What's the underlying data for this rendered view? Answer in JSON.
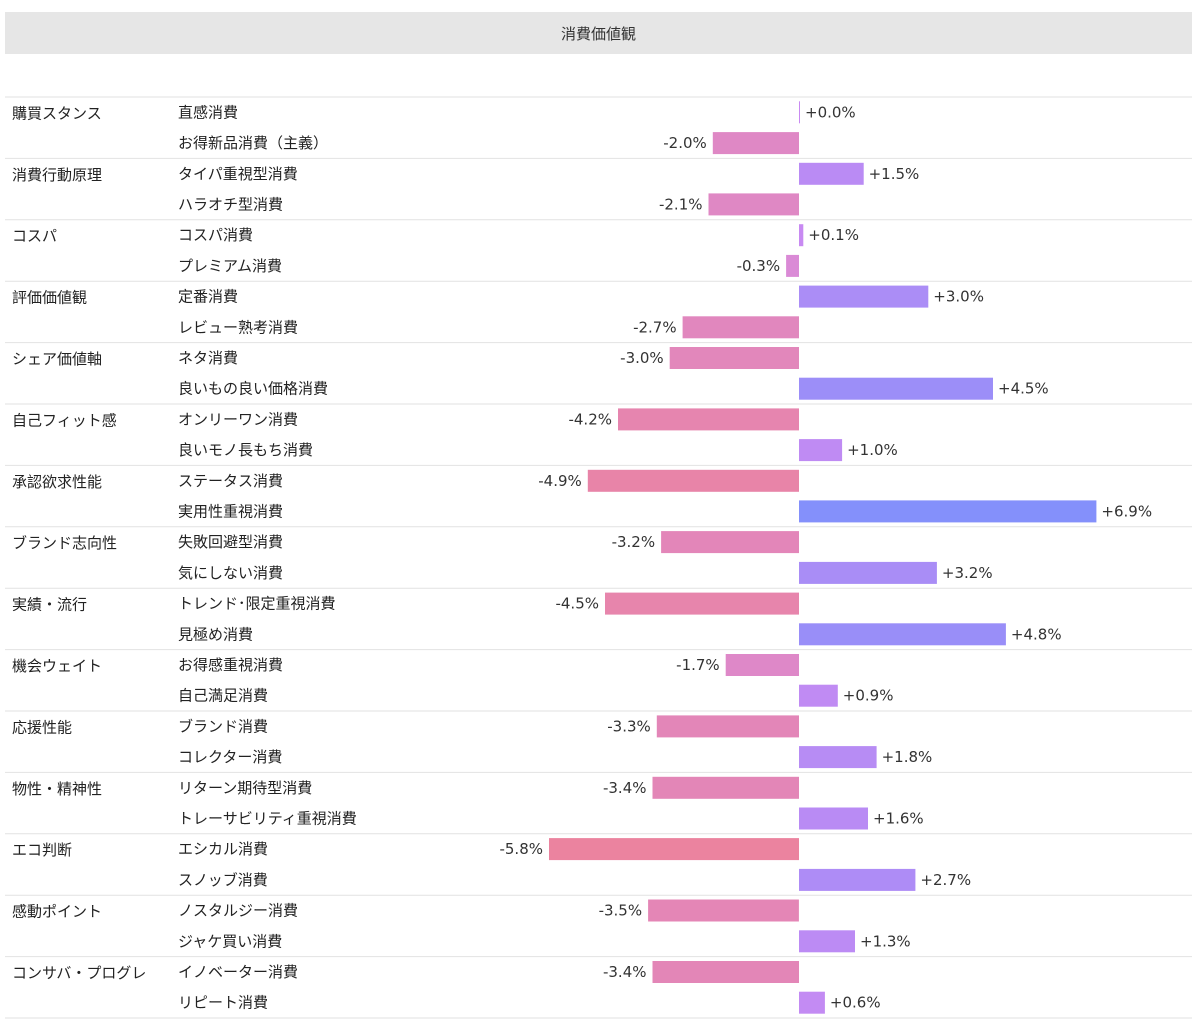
{
  "title": "消費価値観",
  "chart_data": {
    "type": "bar",
    "orientation": "horizontal-diverging",
    "title": "消費価値観",
    "xlim": [
      -6.9,
      6.9
    ],
    "groups": [
      {
        "name": "購買スタンス",
        "items": [
          {
            "label": "直感消費",
            "value": 0.0,
            "value_label": "+0.0%"
          },
          {
            "label": "お得新品消費（主義）",
            "value": -2.0,
            "value_label": "-2.0%"
          }
        ]
      },
      {
        "name": "消費行動原理",
        "items": [
          {
            "label": "タイパ重視型消費",
            "value": 1.5,
            "value_label": "+1.5%"
          },
          {
            "label": "ハラオチ型消費",
            "value": -2.1,
            "value_label": "-2.1%"
          }
        ]
      },
      {
        "name": "コスパ",
        "items": [
          {
            "label": "コスパ消費",
            "value": 0.1,
            "value_label": "+0.1%"
          },
          {
            "label": "プレミアム消費",
            "value": -0.3,
            "value_label": "-0.3%"
          }
        ]
      },
      {
        "name": "評価価値観",
        "items": [
          {
            "label": "定番消費",
            "value": 3.0,
            "value_label": "+3.0%"
          },
          {
            "label": "レビュー熟考消費",
            "value": -2.7,
            "value_label": "-2.7%"
          }
        ]
      },
      {
        "name": "シェア価値軸",
        "items": [
          {
            "label": "ネタ消費",
            "value": -3.0,
            "value_label": "-3.0%"
          },
          {
            "label": "良いもの良い価格消費",
            "value": 4.5,
            "value_label": "+4.5%"
          }
        ]
      },
      {
        "name": "自己フィット感",
        "items": [
          {
            "label": "オンリーワン消費",
            "value": -4.2,
            "value_label": "-4.2%"
          },
          {
            "label": "良いモノ長もち消費",
            "value": 1.0,
            "value_label": "+1.0%"
          }
        ]
      },
      {
        "name": "承認欲求性能",
        "items": [
          {
            "label": "ステータス消費",
            "value": -4.9,
            "value_label": "-4.9%"
          },
          {
            "label": "実用性重視消費",
            "value": 6.9,
            "value_label": "+6.9%"
          }
        ]
      },
      {
        "name": "ブランド志向性",
        "items": [
          {
            "label": "失敗回避型消費",
            "value": -3.2,
            "value_label": "-3.2%"
          },
          {
            "label": "気にしない消費",
            "value": 3.2,
            "value_label": "+3.2%"
          }
        ]
      },
      {
        "name": "実績・流行",
        "items": [
          {
            "label": "トレンド･限定重視消費",
            "value": -4.5,
            "value_label": "-4.5%"
          },
          {
            "label": "見極め消費",
            "value": 4.8,
            "value_label": "+4.8%"
          }
        ]
      },
      {
        "name": "機会ウェイト",
        "items": [
          {
            "label": "お得感重視消費",
            "value": -1.7,
            "value_label": "-1.7%"
          },
          {
            "label": "自己満足消費",
            "value": 0.9,
            "value_label": "+0.9%"
          }
        ]
      },
      {
        "name": "応援性能",
        "items": [
          {
            "label": "ブランド消費",
            "value": -3.3,
            "value_label": "-3.3%"
          },
          {
            "label": "コレクター消費",
            "value": 1.8,
            "value_label": "+1.8%"
          }
        ]
      },
      {
        "name": "物性・精神性",
        "items": [
          {
            "label": "リターン期待型消費",
            "value": -3.4,
            "value_label": "-3.4%"
          },
          {
            "label": "トレーサビリティ重視消費",
            "value": 1.6,
            "value_label": "+1.6%"
          }
        ]
      },
      {
        "name": "エコ判断",
        "items": [
          {
            "label": "エシカル消費",
            "value": -5.8,
            "value_label": "-5.8%"
          },
          {
            "label": "スノッブ消費",
            "value": 2.7,
            "value_label": "+2.7%"
          }
        ]
      },
      {
        "name": "感動ポイント",
        "items": [
          {
            "label": "ノスタルジー消費",
            "value": -3.5,
            "value_label": "-3.5%"
          },
          {
            "label": "ジャケ買い消費",
            "value": 1.3,
            "value_label": "+1.3%"
          }
        ]
      },
      {
        "name": "コンサバ・プログレ",
        "items": [
          {
            "label": "イノベーター消費",
            "value": -3.4,
            "value_label": "-3.4%"
          },
          {
            "label": "リピート消費",
            "value": 0.6,
            "value_label": "+0.6%"
          }
        ]
      }
    ],
    "colors": {
      "negative_weak": "#d98ad9",
      "negative_strong": "#ee8294",
      "positive_weak": "#c98af2",
      "positive_strong": "#8490fb",
      "divider": "#e2e2e2"
    }
  }
}
